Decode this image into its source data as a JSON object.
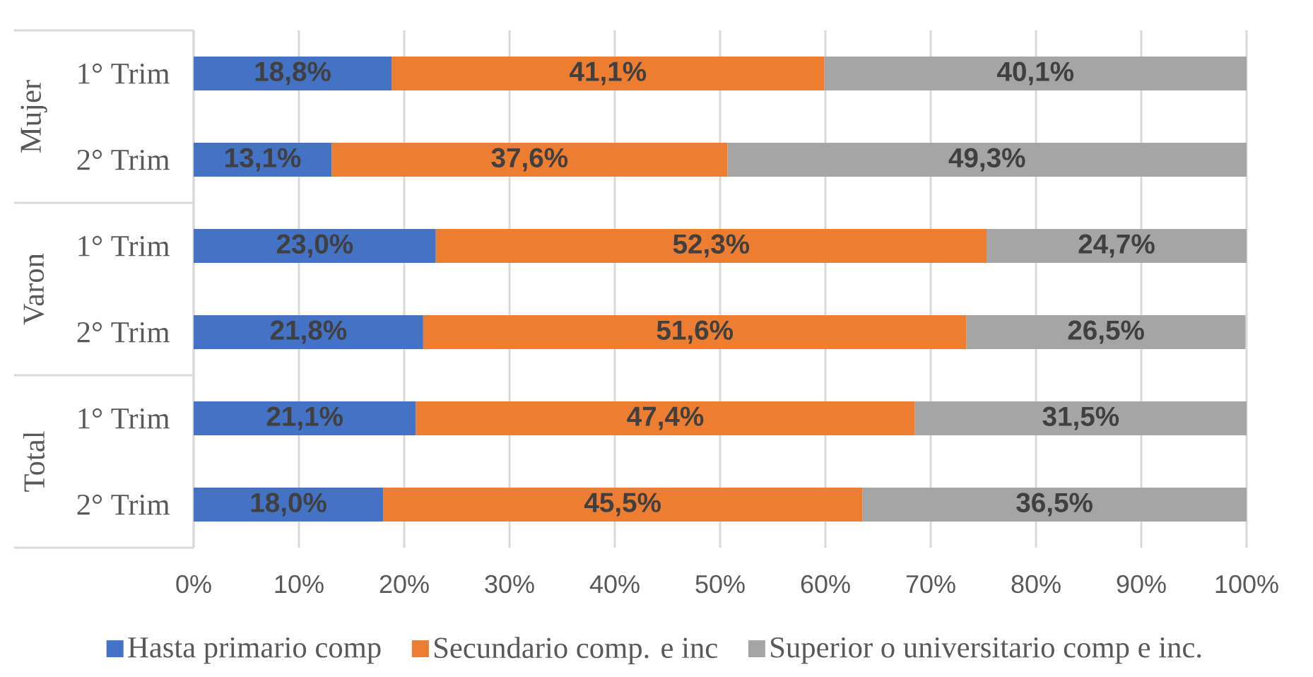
{
  "chart_data": {
    "type": "bar",
    "orientation": "horizontal",
    "stacked": true,
    "categories": [
      "1° Trim",
      "2° Trim",
      "1° Trim",
      "2° Trim",
      "1° Trim",
      "2° Trim"
    ],
    "annotations": [
      "Mujer",
      "Varon",
      "Total"
    ],
    "series": [
      {
        "name": "Hasta primario comp",
        "color": "#4472c4",
        "values": [
          18.8,
          13.1,
          23.0,
          21.8,
          21.1,
          18.0
        ],
        "value_labels": [
          "18,8%",
          "13,1%",
          "23,0%",
          "21,8%",
          "21,1%",
          "18,0%"
        ]
      },
      {
        "name": "Secundario comp. e inc",
        "color": "#ed7d31",
        "values": [
          41.1,
          37.6,
          52.3,
          51.6,
          47.4,
          45.5
        ],
        "value_labels": [
          "41,1%",
          "37,6%",
          "52,3%",
          "51,6%",
          "47,4%",
          "45,5%"
        ]
      },
      {
        "name": "Superior o universitario comp e inc.",
        "color": "#a5a5a5",
        "values": [
          40.1,
          49.3,
          24.7,
          26.5,
          31.5,
          36.5
        ],
        "value_labels": [
          "40,1%",
          "49,3%",
          "24,7%",
          "26,5%",
          "31,5%",
          "36,5%"
        ]
      }
    ],
    "xlim": [
      0,
      100
    ],
    "xticks": [
      {
        "value": 0,
        "label": "0%"
      },
      {
        "value": 10,
        "label": "10%"
      },
      {
        "value": 20,
        "label": "20%"
      },
      {
        "value": 30,
        "label": "30%"
      },
      {
        "value": 40,
        "label": "40%"
      },
      {
        "value": 50,
        "label": "50%"
      },
      {
        "value": 60,
        "label": "60%"
      },
      {
        "value": 70,
        "label": "70%"
      },
      {
        "value": 80,
        "label": "80%"
      },
      {
        "value": 90,
        "label": "90%"
      },
      {
        "value": 100,
        "label": "100%"
      }
    ],
    "grid": "x",
    "legend": "bottom"
  }
}
